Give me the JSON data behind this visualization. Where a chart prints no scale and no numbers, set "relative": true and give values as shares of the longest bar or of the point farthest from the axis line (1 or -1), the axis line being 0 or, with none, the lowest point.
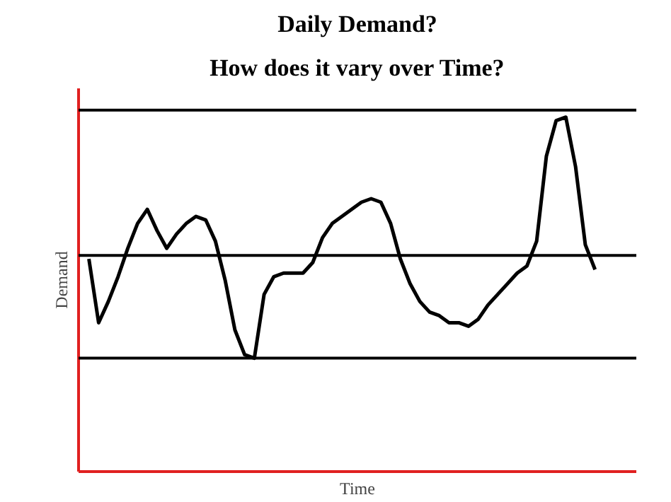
{
  "chart_data": {
    "type": "line",
    "title": "Daily Demand?",
    "subtitle": "How does it vary over Time?",
    "xlabel": "Time",
    "ylabel": "Demand",
    "relative": true,
    "tick_labels": false,
    "categories": [
      null,
      null,
      null,
      null,
      null,
      null,
      null,
      null,
      null,
      null,
      null,
      null,
      null,
      null,
      null,
      null,
      null,
      null,
      null,
      null,
      null,
      null,
      null,
      null,
      null,
      null,
      null,
      null,
      null,
      null,
      null,
      null,
      null,
      null,
      null,
      null,
      null,
      null,
      null,
      null,
      null,
      null,
      null,
      null,
      null,
      null,
      null,
      null,
      null,
      null,
      null,
      null,
      null
    ],
    "series": [
      {
        "color": "#000000",
        "values": [
          0.6,
          0.42,
          0.48,
          0.55,
          0.63,
          0.7,
          0.74,
          0.68,
          0.63,
          0.67,
          0.7,
          0.72,
          0.71,
          0.65,
          0.54,
          0.4,
          0.33,
          0.32,
          0.5,
          0.55,
          0.56,
          0.56,
          0.56,
          0.59,
          0.66,
          0.7,
          0.72,
          0.74,
          0.76,
          0.77,
          0.76,
          0.7,
          0.6,
          0.53,
          0.48,
          0.45,
          0.44,
          0.42,
          0.42,
          0.41,
          0.43,
          0.47,
          0.5,
          0.53,
          0.56,
          0.58,
          0.65,
          0.89,
          0.99,
          1.0,
          0.86,
          0.64,
          0.57
        ]
      }
    ],
    "ref_lines": [
      {
        "axis": "y",
        "value": 1.02,
        "color": "#000000"
      },
      {
        "axis": "y",
        "value": 0.61,
        "color": "#000000"
      },
      {
        "axis": "y",
        "value": 0.32,
        "color": "#000000"
      }
    ]
  }
}
